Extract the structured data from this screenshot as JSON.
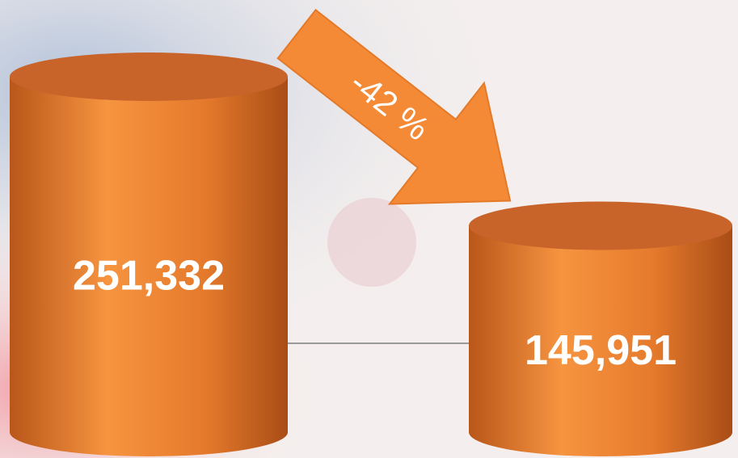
{
  "chart_data": {
    "type": "bar",
    "categories": [
      null,
      null
    ],
    "values": [
      251332,
      145951
    ],
    "value_labels": [
      "251,332",
      "145,951"
    ],
    "color": "#f08a35",
    "annotation": "-42 %"
  }
}
